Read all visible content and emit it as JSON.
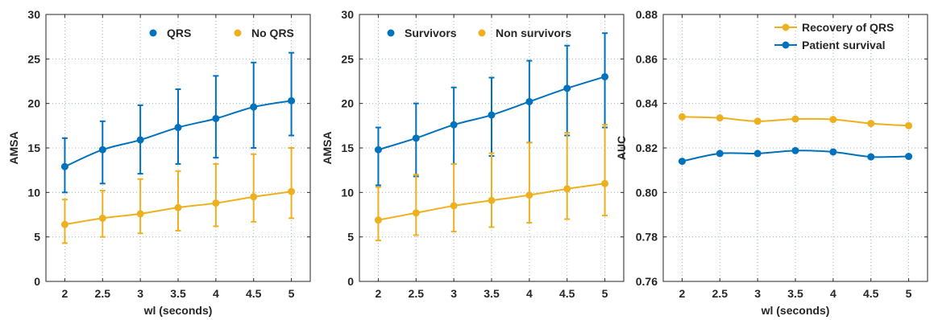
{
  "colors": {
    "blue": "#0072bd",
    "orange": "#edb120"
  },
  "chart_data": [
    {
      "type": "line",
      "xlabel": "wl (seconds)",
      "ylabel": "AMSA",
      "xlim": [
        1.75,
        5.25
      ],
      "ylim": [
        0,
        30
      ],
      "xticks": [
        "2",
        "2.5",
        "3",
        "3.5",
        "4",
        "4.5",
        "5"
      ],
      "yticks": [
        "0",
        "5",
        "10",
        "15",
        "20",
        "25",
        "30"
      ],
      "grid": true,
      "legend_position": "top-right",
      "legend_layout": "horizontal",
      "x": [
        2,
        2.5,
        3,
        3.5,
        4,
        4.5,
        5
      ],
      "series": [
        {
          "name": "QRS",
          "color": "#0072bd",
          "values": [
            12.9,
            14.8,
            15.9,
            17.3,
            18.3,
            19.6,
            20.3
          ],
          "error_low": [
            10.0,
            11.0,
            12.1,
            13.2,
            13.9,
            15.0,
            16.4
          ],
          "error_high": [
            16.1,
            18.0,
            19.8,
            21.6,
            23.1,
            24.6,
            25.7
          ]
        },
        {
          "name": "No QRS",
          "color": "#edb120",
          "values": [
            6.4,
            7.1,
            7.6,
            8.3,
            8.8,
            9.5,
            10.1
          ],
          "error_low": [
            4.3,
            5.0,
            5.4,
            5.7,
            6.2,
            6.7,
            7.1
          ],
          "error_high": [
            9.2,
            10.2,
            11.5,
            12.4,
            13.2,
            14.3,
            15.0
          ]
        }
      ]
    },
    {
      "type": "line",
      "xlabel": "",
      "ylabel": "AMSA",
      "xlim": [
        1.75,
        5.25
      ],
      "ylim": [
        0,
        30
      ],
      "xticks": [
        "2",
        "2.5",
        "3",
        "3.5",
        "4",
        "4.5",
        "5"
      ],
      "yticks": [
        "0",
        "5",
        "10",
        "15",
        "20",
        "25",
        "30"
      ],
      "grid": true,
      "legend_position": "top-right",
      "legend_layout": "horizontal",
      "x": [
        2,
        2.5,
        3,
        3.5,
        4,
        4.5,
        5
      ],
      "series": [
        {
          "name": "Survivors",
          "color": "#0072bd",
          "values": [
            14.8,
            16.1,
            17.6,
            18.7,
            20.2,
            21.7,
            23.0
          ],
          "error_low": [
            10.8,
            11.8,
            13.2,
            14.1,
            15.6,
            16.4,
            17.3
          ],
          "error_high": [
            17.3,
            20.0,
            21.8,
            22.9,
            24.8,
            26.5,
            27.9
          ]
        },
        {
          "name": "Non survivors",
          "color": "#edb120",
          "values": [
            6.9,
            7.7,
            8.5,
            9.1,
            9.7,
            10.4,
            11.0
          ],
          "error_low": [
            4.6,
            5.2,
            5.6,
            6.1,
            6.6,
            7.0,
            7.4
          ],
          "error_high": [
            10.6,
            12.0,
            13.2,
            14.4,
            15.6,
            16.7,
            17.6
          ]
        }
      ]
    },
    {
      "type": "line",
      "xlabel": "wl (seconds)",
      "ylabel": "AUC",
      "xlim": [
        1.75,
        5.25
      ],
      "ylim": [
        0.76,
        0.88
      ],
      "xticks": [
        "2",
        "2.5",
        "3",
        "3.5",
        "4",
        "4.5",
        "5"
      ],
      "yticks": [
        "0.76",
        "0.78",
        "0.80",
        "0.82",
        "0.84",
        "0.86",
        "0.88"
      ],
      "grid": true,
      "legend_position": "top-right",
      "legend_layout": "vertical",
      "x": [
        2,
        2.5,
        3,
        3.5,
        4,
        4.5,
        5
      ],
      "series": [
        {
          "name": "Recovery of QRS",
          "color": "#edb120",
          "values": [
            0.834,
            0.8335,
            0.832,
            0.833,
            0.8328,
            0.831,
            0.83
          ]
        },
        {
          "name": "Patient survival",
          "color": "#0072bd",
          "values": [
            0.814,
            0.8175,
            0.8175,
            0.8188,
            0.8182,
            0.816,
            0.8162
          ]
        }
      ]
    }
  ]
}
